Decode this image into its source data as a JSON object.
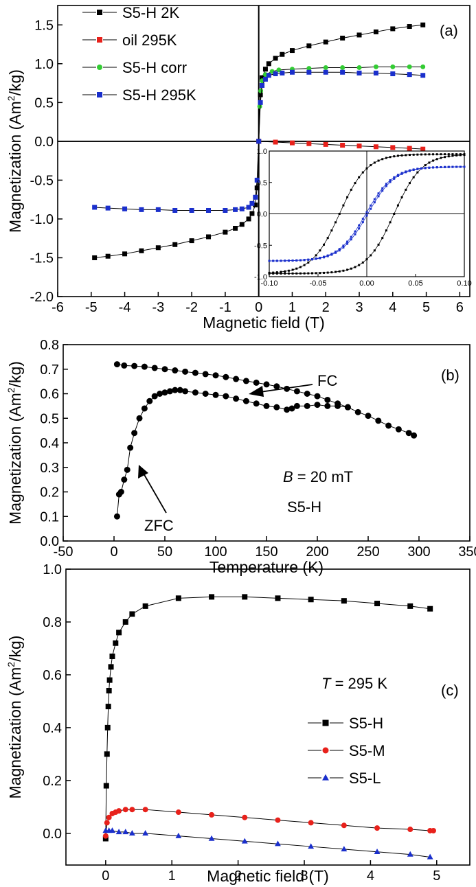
{
  "chart_data": [
    {
      "panel": "a",
      "type": "line",
      "label": "(a)",
      "xlabel": "Magnetic field (T)",
      "ylabel": "Magnetization (Am",
      "ylabel_sup": "2",
      "ylabel_tail": "/kg)",
      "xlim": [
        -6,
        6.3
      ],
      "ylim": [
        -2.0,
        1.75
      ],
      "xticks": [
        -6,
        -5,
        -4,
        -3,
        -2,
        -1,
        0,
        1,
        2,
        3,
        4,
        5,
        6
      ],
      "yticks": [
        -2.0,
        -1.5,
        -1.0,
        -0.5,
        0.0,
        0.5,
        1.0,
        1.5
      ],
      "xtick_labels": [
        "-6",
        "-5",
        "-4",
        "-3",
        "-2",
        "-1",
        "0",
        "1",
        "2",
        "3",
        "4",
        "5",
        "6"
      ],
      "ytick_labels": [
        "-2.0",
        "-1.5",
        "-1.0",
        "-0.5",
        "0.0",
        "0.5",
        "1.0",
        "1.5"
      ],
      "series": [
        {
          "name": "S5-H 2K",
          "color": "#000000",
          "marker": "square",
          "x": [
            -4.9,
            -4.5,
            -4.0,
            -3.5,
            -3.0,
            -2.5,
            -2.0,
            -1.5,
            -1.0,
            -0.7,
            -0.5,
            -0.3,
            -0.2,
            -0.1,
            -0.05,
            0.0,
            0.05,
            0.1,
            0.2,
            0.3,
            0.5,
            0.7,
            1.0,
            1.5,
            2.0,
            2.5,
            3.0,
            3.5,
            4.0,
            4.5,
            4.9
          ],
          "y": [
            -1.5,
            -1.48,
            -1.45,
            -1.41,
            -1.37,
            -1.33,
            -1.28,
            -1.23,
            -1.17,
            -1.12,
            -1.07,
            -1.0,
            -0.93,
            -0.82,
            -0.6,
            0.0,
            0.6,
            0.82,
            0.93,
            1.0,
            1.07,
            1.12,
            1.17,
            1.23,
            1.28,
            1.33,
            1.37,
            1.41,
            1.45,
            1.48,
            1.5
          ]
        },
        {
          "name": "oil 295K",
          "color": "#e8211b",
          "marker": "square",
          "x": [
            0.0,
            0.5,
            1.0,
            1.5,
            2.0,
            2.5,
            3.0,
            3.5,
            4.0,
            4.5,
            4.9
          ],
          "y": [
            0.0,
            -0.01,
            -0.02,
            -0.03,
            -0.04,
            -0.05,
            -0.06,
            -0.07,
            -0.08,
            -0.09,
            -0.1
          ]
        },
        {
          "name": "S5-H corr",
          "color": "#33cc33",
          "marker": "circle",
          "x": [
            0.0,
            0.03,
            0.06,
            0.1,
            0.2,
            0.4,
            0.6,
            1.0,
            1.5,
            2.0,
            2.5,
            3.0,
            3.5,
            4.0,
            4.5,
            4.9
          ],
          "y": [
            0.0,
            0.45,
            0.65,
            0.78,
            0.86,
            0.9,
            0.92,
            0.93,
            0.94,
            0.95,
            0.95,
            0.95,
            0.96,
            0.96,
            0.96,
            0.96
          ]
        },
        {
          "name": "S5-H 295K",
          "color": "#1a2fcc",
          "marker": "square",
          "x": [
            -4.9,
            -4.5,
            -4.0,
            -3.5,
            -3.0,
            -2.5,
            -2.0,
            -1.5,
            -1.0,
            -0.7,
            -0.5,
            -0.3,
            -0.2,
            -0.1,
            -0.05,
            0.0,
            0.05,
            0.1,
            0.2,
            0.3,
            0.5,
            0.7,
            1.0,
            1.5,
            2.0,
            2.5,
            3.0,
            3.5,
            4.0,
            4.5,
            4.9
          ],
          "y": [
            -0.85,
            -0.86,
            -0.87,
            -0.88,
            -0.88,
            -0.89,
            -0.89,
            -0.89,
            -0.89,
            -0.88,
            -0.87,
            -0.85,
            -0.8,
            -0.72,
            -0.5,
            0.0,
            0.5,
            0.72,
            0.8,
            0.85,
            0.87,
            0.88,
            0.89,
            0.89,
            0.89,
            0.89,
            0.88,
            0.88,
            0.87,
            0.86,
            0.85
          ]
        }
      ],
      "inset": {
        "xlim": [
          -0.1,
          0.1
        ],
        "ylim": [
          -1.0,
          1.0
        ],
        "xtick_labels": [
          "-0.10",
          "-0.05",
          "0.00",
          "0.05",
          "0.10"
        ],
        "xticks": [
          -0.1,
          -0.05,
          0.0,
          0.05,
          0.1
        ],
        "ytick_labels": [
          "-1.0",
          "-0.5",
          "0.0",
          "0.5",
          "1.0"
        ],
        "yticks": [
          -1.0,
          -0.5,
          0.0,
          0.5,
          1.0
        ]
      }
    },
    {
      "panel": "b",
      "type": "scatter",
      "label": "(b)",
      "xlabel": "Temperature (K)",
      "ylabel": "Magnetization (Am",
      "ylabel_sup": "2",
      "ylabel_tail": "/kg)",
      "xlim": [
        -50,
        350
      ],
      "ylim": [
        0.0,
        0.8
      ],
      "xticks": [
        -50,
        0,
        50,
        100,
        150,
        200,
        250,
        300,
        350
      ],
      "yticks": [
        0.0,
        0.1,
        0.2,
        0.3,
        0.4,
        0.5,
        0.6,
        0.7,
        0.8
      ],
      "xtick_labels": [
        "-50",
        "0",
        "50",
        "100",
        "150",
        "200",
        "250",
        "300",
        "350"
      ],
      "ytick_labels": [
        "0.0",
        "0.1",
        "0.2",
        "0.3",
        "0.4",
        "0.5",
        "0.6",
        "0.7",
        "0.8"
      ],
      "series": [
        {
          "name": "FC",
          "color": "#000000",
          "x": [
            3,
            10,
            20,
            30,
            40,
            50,
            60,
            70,
            80,
            90,
            100,
            110,
            120,
            130,
            140,
            150,
            160,
            170,
            180,
            190,
            200,
            210,
            220,
            230,
            240,
            250,
            260,
            270,
            280,
            290,
            295
          ],
          "y": [
            0.72,
            0.715,
            0.713,
            0.71,
            0.705,
            0.7,
            0.695,
            0.69,
            0.685,
            0.68,
            0.675,
            0.668,
            0.66,
            0.652,
            0.645,
            0.638,
            0.63,
            0.62,
            0.61,
            0.6,
            0.59,
            0.575,
            0.56,
            0.545,
            0.525,
            0.51,
            0.49,
            0.47,
            0.455,
            0.44,
            0.43
          ]
        },
        {
          "name": "ZFC",
          "color": "#000000",
          "x": [
            3,
            5,
            7,
            10,
            13,
            16,
            20,
            25,
            30,
            35,
            40,
            45,
            50,
            55,
            60,
            65,
            70,
            80,
            90,
            100,
            110,
            120,
            130,
            140,
            150,
            160,
            170,
            175,
            180,
            190,
            200,
            210,
            220,
            230
          ],
          "y": [
            0.1,
            0.19,
            0.2,
            0.25,
            0.29,
            0.38,
            0.44,
            0.5,
            0.54,
            0.57,
            0.59,
            0.6,
            0.605,
            0.61,
            0.615,
            0.615,
            0.61,
            0.605,
            0.6,
            0.595,
            0.59,
            0.58,
            0.57,
            0.56,
            0.55,
            0.545,
            0.535,
            0.54,
            0.55,
            0.55,
            0.555,
            0.55,
            0.55,
            0.545
          ]
        }
      ],
      "annotations": {
        "fc": "FC",
        "zfc": "ZFC",
        "b_symbol": "B",
        "b_text": " = 20 mT",
        "sample": "S5-H"
      }
    },
    {
      "panel": "c",
      "type": "line",
      "label": "(c)",
      "xlabel": "Magnetic field (T)",
      "ylabel": "Magnetization (Am",
      "ylabel_sup": "2",
      "ylabel_tail": "/kg)",
      "xlim": [
        -0.6,
        5.5
      ],
      "ylim": [
        -0.12,
        1.0
      ],
      "xticks": [
        0,
        1,
        2,
        3,
        4,
        5
      ],
      "yticks": [
        0.0,
        0.2,
        0.4,
        0.6,
        0.8,
        1.0
      ],
      "xtick_labels": [
        "0",
        "1",
        "2",
        "3",
        "4",
        "5"
      ],
      "ytick_labels": [
        "0.0",
        "0.2",
        "0.4",
        "0.6",
        "0.8",
        "1.0"
      ],
      "temperature_symbol": "T",
      "temperature_text": " = 295 K",
      "series": [
        {
          "name": "S5-H",
          "color": "#000000",
          "marker": "square",
          "x": [
            0.0,
            0.01,
            0.02,
            0.03,
            0.04,
            0.05,
            0.06,
            0.08,
            0.1,
            0.15,
            0.2,
            0.3,
            0.4,
            0.6,
            1.1,
            1.6,
            2.1,
            2.6,
            3.1,
            3.6,
            4.1,
            4.6,
            4.9
          ],
          "y": [
            -0.02,
            0.18,
            0.3,
            0.4,
            0.48,
            0.54,
            0.58,
            0.63,
            0.67,
            0.72,
            0.76,
            0.8,
            0.83,
            0.86,
            0.89,
            0.895,
            0.895,
            0.89,
            0.885,
            0.88,
            0.87,
            0.86,
            0.85
          ]
        },
        {
          "name": "S5-M",
          "color": "#e8211b",
          "marker": "circle",
          "x": [
            0.0,
            0.02,
            0.05,
            0.1,
            0.15,
            0.2,
            0.3,
            0.4,
            0.6,
            1.1,
            1.6,
            2.1,
            2.6,
            3.1,
            3.6,
            4.1,
            4.6,
            4.9,
            4.95
          ],
          "y": [
            -0.01,
            0.04,
            0.06,
            0.075,
            0.08,
            0.085,
            0.09,
            0.09,
            0.09,
            0.08,
            0.07,
            0.06,
            0.05,
            0.04,
            0.03,
            0.02,
            0.015,
            0.01,
            0.01
          ]
        },
        {
          "name": "S5-L",
          "color": "#1a2fcc",
          "marker": "triangle",
          "x": [
            0.0,
            0.05,
            0.1,
            0.2,
            0.3,
            0.4,
            0.6,
            1.1,
            1.6,
            2.1,
            2.6,
            3.1,
            3.6,
            4.1,
            4.6,
            4.9
          ],
          "y": [
            0.01,
            0.01,
            0.01,
            0.005,
            0.005,
            0.0,
            0.0,
            -0.01,
            -0.02,
            -0.03,
            -0.04,
            -0.05,
            -0.06,
            -0.07,
            -0.08,
            -0.09
          ]
        }
      ]
    }
  ]
}
